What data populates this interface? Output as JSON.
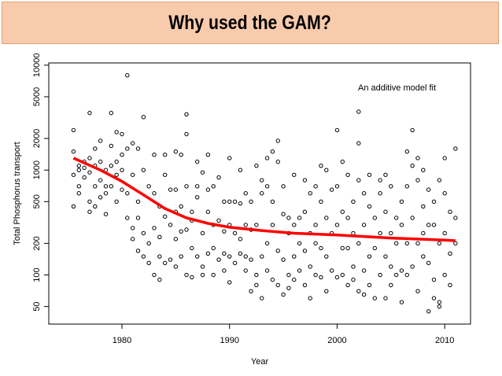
{
  "slide_title": "Why used the GAM?",
  "chart_data": {
    "type": "scatter",
    "log_y": true,
    "xlabel": "Year",
    "ylabel": "Total Phosphorus transport",
    "annotation": "An additive model fit",
    "xlim": [
      1973.2,
      2012.4
    ],
    "ylim": [
      34,
      10500
    ],
    "xticks": [
      1980,
      1990,
      2000,
      2010
    ],
    "yticks": [
      50,
      100,
      200,
      500,
      1000,
      2000,
      5000,
      10000
    ],
    "series": [
      {
        "type": "scatter",
        "color": "#000000",
        "x": [
          1975.5,
          1975.5,
          1975.5,
          1975.5,
          1976,
          1976,
          1976,
          1976,
          1976.5,
          1976.5,
          1976.5,
          1977,
          1977,
          1977,
          1977,
          1977,
          1977.5,
          1977.5,
          1977.5,
          1977.5,
          1978,
          1978,
          1978,
          1978,
          1978.5,
          1978.5,
          1978.5,
          1978.5,
          1979,
          1979,
          1979,
          1979,
          1979.5,
          1979.5,
          1979.5,
          1979.5,
          1980,
          1980,
          1980,
          1980,
          1980.5,
          1980.5,
          1980.5,
          1980.5,
          1981,
          1981,
          1981,
          1981,
          1981.5,
          1981.5,
          1981.5,
          1981.5,
          1982,
          1982,
          1982,
          1982,
          1982.5,
          1982.5,
          1982.5,
          1983,
          1983,
          1983,
          1983,
          1983.5,
          1983.5,
          1983.5,
          1983.5,
          1984,
          1984,
          1984,
          1984,
          1984.5,
          1984.5,
          1984.5,
          1985,
          1985,
          1985,
          1985,
          1985,
          1985.5,
          1985.5,
          1985.5,
          1985.5,
          1986,
          1986,
          1986,
          1986,
          1986,
          1986.5,
          1986.5,
          1986.5,
          1986.5,
          1987,
          1987,
          1987,
          1987,
          1987.5,
          1987.5,
          1987.5,
          1987.5,
          1988,
          1988,
          1988,
          1988,
          1988.5,
          1988.5,
          1988.5,
          1988.5,
          1989,
          1989,
          1989,
          1989.5,
          1989.5,
          1989.5,
          1989.5,
          1990,
          1990,
          1990,
          1990,
          1990,
          1990.5,
          1990.5,
          1990.5,
          1991,
          1991,
          1991,
          1991,
          1991.5,
          1991.5,
          1991.5,
          1991.5,
          1992,
          1992,
          1992,
          1992,
          1992.5,
          1992.5,
          1992.5,
          1992.5,
          1993,
          1993,
          1993,
          1993,
          1993.5,
          1993.5,
          1993.5,
          1993.5,
          1994,
          1994,
          1994,
          1994,
          1994.5,
          1994.5,
          1994.5,
          1994.5,
          1995,
          1995,
          1995,
          1995,
          1995.5,
          1995.5,
          1995.5,
          1995.5,
          1996,
          1996,
          1996,
          1996,
          1996.5,
          1996.5,
          1996.5,
          1997,
          1997,
          1997,
          1997,
          1997.5,
          1997.5,
          1997.5,
          1997.5,
          1998,
          1998,
          1998,
          1998,
          1998.5,
          1998.5,
          1998.5,
          1998.5,
          1999,
          1999,
          1999,
          1999,
          1999.5,
          1999.5,
          1999.5,
          2000,
          2000,
          2000,
          2000,
          2000.5,
          2000.5,
          2000.5,
          2000.5,
          2001,
          2001,
          2001,
          2001,
          2001.5,
          2001.5,
          2001.5,
          2001.5,
          2002,
          2002,
          2002,
          2002,
          2002,
          2002.5,
          2002.5,
          2002.5,
          2002.5,
          2003,
          2003,
          2003,
          2003,
          2003.5,
          2003.5,
          2003.5,
          2004,
          2004,
          2004,
          2004,
          2004.5,
          2004.5,
          2004.5,
          2004.5,
          2005,
          2005,
          2005,
          2005,
          2005.5,
          2005.5,
          2005.5,
          2006,
          2006,
          2006,
          2006,
          2006.5,
          2006.5,
          2006.5,
          2006.5,
          2007,
          2007,
          2007,
          2007,
          2007.5,
          2007.5,
          2007.5,
          2007.5,
          2008,
          2008,
          2008,
          2008,
          2008.5,
          2008.5,
          2008.5,
          2008.5,
          2009,
          2009,
          2009,
          2009,
          2009.5,
          2009.5,
          2009.5,
          2009.5,
          2010,
          2010,
          2010,
          2010,
          2010.5,
          2010.5,
          2010.5,
          2011,
          2011,
          2011
        ],
        "values": [
          2400,
          1500,
          900,
          450,
          1100,
          700,
          1000,
          600,
          1200,
          850,
          1050,
          3500,
          1300,
          950,
          400,
          500,
          1100,
          1600,
          700,
          450,
          1900,
          1200,
          800,
          550,
          700,
          1000,
          600,
          380,
          3500,
          1700,
          1100,
          700,
          2300,
          1200,
          900,
          500,
          2200,
          1400,
          1000,
          650,
          8000,
          1600,
          600,
          350,
          1800,
          900,
          280,
          220,
          1600,
          500,
          350,
          170,
          3200,
          1000,
          250,
          150,
          700,
          200,
          130,
          1400,
          600,
          280,
          100,
          450,
          230,
          150,
          90,
          1400,
          900,
          360,
          130,
          650,
          300,
          140,
          1500,
          650,
          400,
          220,
          120,
          1400,
          450,
          260,
          150,
          3400,
          2200,
          700,
          270,
          100,
          400,
          330,
          180,
          95,
          1200,
          700,
          550,
          150,
          950,
          250,
          120,
          100,
          1400,
          650,
          400,
          160,
          700,
          300,
          180,
          100,
          850,
          330,
          140,
          500,
          260,
          160,
          110,
          1300,
          500,
          300,
          150,
          85,
          500,
          250,
          130,
          1000,
          480,
          220,
          160,
          600,
          300,
          150,
          110,
          500,
          270,
          140,
          70,
          1100,
          300,
          100,
          80,
          800,
          600,
          150,
          60,
          1300,
          700,
          200,
          110,
          1500,
          500,
          300,
          90,
          1900,
          1200,
          170,
          80,
          700,
          380,
          140,
          65,
          350,
          250,
          100,
          75,
          900,
          300,
          150,
          90,
          350,
          200,
          110,
          800,
          400,
          170,
          80,
          600,
          250,
          120,
          60,
          700,
          300,
          200,
          100,
          1100,
          500,
          180,
          95,
          1000,
          350,
          150,
          70,
          650,
          250,
          110,
          2400,
          700,
          300,
          95,
          1200,
          400,
          180,
          100,
          900,
          350,
          180,
          80,
          500,
          250,
          120,
          90,
          3600,
          1800,
          800,
          200,
          70,
          600,
          300,
          110,
          65,
          900,
          450,
          150,
          80,
          350,
          180,
          60,
          800,
          600,
          250,
          100,
          900,
          400,
          150,
          60,
          700,
          250,
          120,
          80,
          350,
          200,
          100,
          500,
          300,
          110,
          55,
          1500,
          700,
          200,
          100,
          2400,
          1100,
          350,
          120,
          1300,
          800,
          200,
          70,
          1000,
          450,
          250,
          150,
          650,
          300,
          130,
          45,
          500,
          300,
          90,
          60,
          800,
          200,
          55,
          50,
          1300,
          600,
          250,
          100,
          400,
          160,
          80,
          1600,
          350,
          200
        ]
      },
      {
        "type": "line",
        "color": "#ff0000",
        "x": [
          1975.5,
          1978,
          1980,
          1982,
          1984,
          1986,
          1988,
          1990,
          1993,
          1996,
          2000,
          2005,
          2010,
          2011
        ],
        "values": [
          1300,
          1000,
          780,
          580,
          430,
          350,
          310,
          285,
          265,
          250,
          240,
          225,
          215,
          212
        ]
      }
    ]
  }
}
